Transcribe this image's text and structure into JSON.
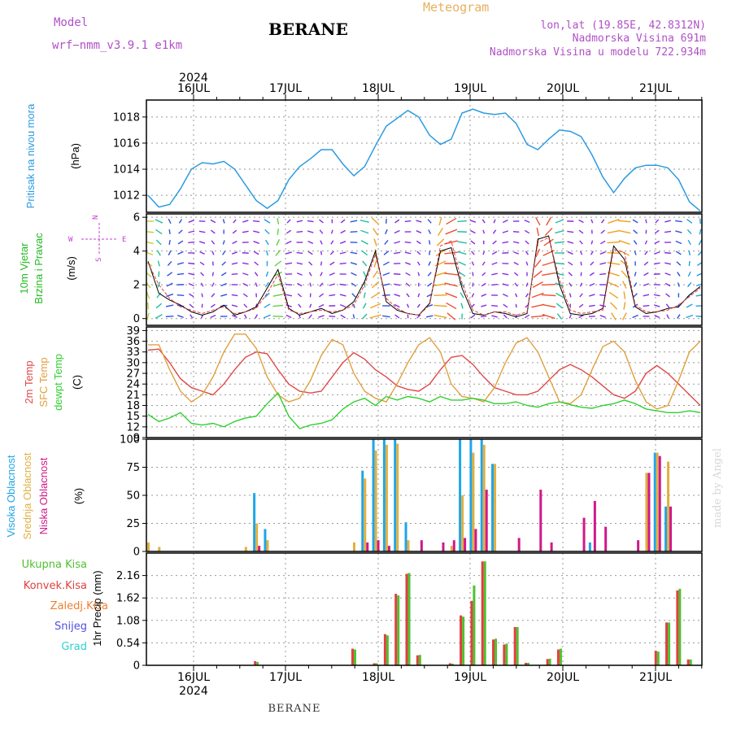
{
  "header": {
    "model_label": "Model",
    "model_name": "wrf−nmm_v3.9.1  e1km",
    "station": "BERANE",
    "product": "Meteogram",
    "coords": "lon,lat (19.85E, 42.8312N)",
    "elev_real": "Nadmorska Visina 691m",
    "elev_model": "Nadmorska Visina u modelu 722.934m"
  },
  "footer": {
    "station": "BERANE",
    "credit": "made by Angel"
  },
  "colors": {
    "pressure": "#2b9be0",
    "temp2m": "#e04848",
    "sfc": "#e0a040",
    "dewpt": "#30d030",
    "cloud_high": "#1fa5e8",
    "cloud_mid": "#e0b040",
    "cloud_low": "#d0188a",
    "rain_total": "#50c030",
    "rain_conv": "#e04040",
    "rain_frz": "#f08030",
    "snow": "#5050e0",
    "hail": "#30d0d0",
    "wind_label": "#22bb22",
    "dir_label": "#c040d0"
  },
  "chart_data": [
    {
      "type": "line",
      "id": "pressure",
      "ylabel": "Pritisak na nivou mora",
      "unit": "(hPa)",
      "ylim": [
        1010.7,
        1019.3
      ],
      "yticks": [
        1012,
        1014,
        1016,
        1018
      ],
      "series": [
        {
          "values": [
            1012,
            1011.1,
            1011.3,
            1012.5,
            1014,
            1014.5,
            1014.4,
            1014.6,
            1014,
            1012.8,
            1011.6,
            1011,
            1011.6,
            1013.2,
            1014.2,
            1014.8,
            1015.5,
            1015.5,
            1014.4,
            1013.5,
            1014.2,
            1015.8,
            1017.3,
            1017.9,
            1018.5,
            1018,
            1016.6,
            1015.9,
            1016.3,
            1018.3,
            1018.6,
            1018.3,
            1018.2,
            1018.3,
            1017.5,
            1015.9,
            1015.5,
            1016.3,
            1017,
            1016.9,
            1016.5,
            1015.1,
            1013.4,
            1012.2,
            1013.3,
            1014.1,
            1014.3,
            1014.3,
            1014.1,
            1013.2,
            1011.5,
            1010.8
          ]
        }
      ]
    },
    {
      "type": "line",
      "id": "wind",
      "ylabel": "10m Vjetar Brzina i Pravac",
      "unit": "(m/s)",
      "compass": {
        "n": "N",
        "s": "S",
        "e": "E",
        "w": "W"
      },
      "ylim": [
        -0.4,
        6.2
      ],
      "yticks": [
        0,
        2,
        4,
        6
      ],
      "series": [
        {
          "values": [
            3.4,
            1.5,
            1.1,
            0.8,
            0.4,
            0.2,
            0.4,
            0.8,
            0.2,
            0.4,
            0.7,
            1.8,
            2.9,
            0.6,
            0.2,
            0.4,
            0.6,
            0.3,
            0.5,
            1.0,
            2.2,
            4.0,
            1.0,
            0.5,
            0.3,
            0.2,
            0.9,
            4.0,
            4.2,
            1.8,
            0.3,
            0.2,
            0.4,
            0.3,
            0.1,
            0.3,
            4.7,
            4.9,
            2.0,
            0.3,
            0.2,
            0.3,
            0.6,
            4.3,
            3.5,
            0.7,
            0.3,
            0.4,
            0.6,
            0.7,
            1.4,
            1.9
          ]
        },
        {
          "values": [
            3.3,
            2.0,
            1.2,
            0.7,
            0.5,
            0.3,
            0.5,
            0.7,
            0.3,
            0.4,
            0.6,
            1.5,
            2.6,
            0.5,
            0.3,
            0.4,
            0.5,
            0.4,
            0.5,
            0.8,
            2.0,
            3.8,
            1.2,
            0.6,
            0.3,
            0.2,
            0.8,
            4.3,
            4.6,
            2.1,
            0.5,
            0.2,
            0.4,
            0.4,
            0.2,
            0.4,
            4.5,
            4.8,
            2.3,
            0.5,
            0.3,
            0.4,
            0.5,
            4.1,
            3.9,
            0.8,
            0.4,
            0.4,
            0.5,
            0.8,
            1.3,
            1.8
          ]
        }
      ]
    },
    {
      "type": "line",
      "id": "temperature",
      "ylabels": [
        "2m Temp",
        "SFC Temp",
        "dewpt Temp"
      ],
      "unit": "(C)",
      "ylim": [
        9,
        40
      ],
      "yticks": [
        9,
        12,
        15,
        18,
        21,
        24,
        27,
        30,
        33,
        36,
        39
      ],
      "series": [
        {
          "name": "2m Temp",
          "values": [
            33.5,
            33.8,
            30,
            25.5,
            23,
            22,
            21,
            24,
            28,
            31.5,
            33,
            32.5,
            28,
            24,
            22,
            21.5,
            22,
            26,
            30,
            32.8,
            31,
            28,
            26,
            23.5,
            22.5,
            22,
            24,
            28,
            31.5,
            32,
            29.5,
            26,
            23,
            22,
            21,
            21,
            22,
            25,
            28,
            29.5,
            28,
            26,
            23.5,
            21,
            20,
            22,
            27,
            29.2,
            27,
            24,
            21,
            18
          ]
        },
        {
          "name": "SFC Temp",
          "values": [
            35,
            35,
            28,
            22,
            19,
            21,
            26,
            33,
            38,
            38,
            34,
            26,
            21,
            19,
            20,
            25,
            32,
            36.5,
            35,
            27,
            22,
            20,
            19,
            24,
            30,
            35,
            37,
            33,
            24,
            20.5,
            20,
            19,
            23,
            30,
            35.5,
            37,
            33,
            26,
            19,
            18.5,
            21,
            28,
            34.5,
            36,
            33,
            25,
            19,
            17,
            18,
            25,
            33,
            36
          ]
        },
        {
          "name": "dewpt Temp",
          "values": [
            15.5,
            13.5,
            14.5,
            16,
            13,
            12.5,
            13,
            12,
            13.5,
            14.5,
            15,
            18.5,
            21.5,
            15,
            11.5,
            12.5,
            13,
            14,
            17,
            19,
            20,
            18,
            20.5,
            19.5,
            20.5,
            20,
            19,
            20.5,
            19.5,
            19.5,
            20,
            19.5,
            18.5,
            18.5,
            19,
            18,
            17.5,
            18.5,
            19,
            18.2,
            17.5,
            17.2,
            18,
            18.5,
            19.5,
            18.5,
            17,
            16.5,
            16,
            16,
            16.5,
            16
          ]
        }
      ]
    },
    {
      "type": "bar",
      "id": "clouds",
      "ylabels": [
        "Visoka Oblacnost",
        "Srednja Oblacnost",
        "Niska Oblacnost"
      ],
      "unit": "(%)",
      "ylim": [
        0,
        100
      ],
      "yticks": [
        0,
        25,
        50,
        75,
        100
      ],
      "series": [
        {
          "name": "Visoka Oblacnost",
          "values": [
            0,
            0,
            0,
            0,
            0,
            0,
            0,
            0,
            0,
            0,
            52,
            20,
            0,
            0,
            0,
            0,
            0,
            0,
            0,
            0,
            72,
            100,
            100,
            100,
            26,
            0,
            0,
            0,
            0,
            100,
            100,
            100,
            78,
            0,
            0,
            0,
            0,
            0,
            0,
            0,
            0,
            8,
            0,
            0,
            0,
            0,
            0,
            88,
            40,
            0,
            0,
            0
          ]
        },
        {
          "name": "Srednja Oblacnost",
          "values": [
            8,
            4,
            0,
            0,
            0,
            0,
            0,
            0,
            0,
            4,
            25,
            10,
            0,
            0,
            0,
            0,
            0,
            0,
            0,
            8,
            65,
            90,
            95,
            96,
            10,
            0,
            0,
            0,
            5,
            50,
            88,
            95,
            78,
            0,
            0,
            0,
            0,
            0,
            0,
            0,
            0,
            0,
            0,
            0,
            0,
            0,
            70,
            88,
            80,
            0,
            0,
            0
          ]
        },
        {
          "name": "Niska Oblacnost",
          "values": [
            0,
            0,
            0,
            0,
            0,
            0,
            0,
            0,
            0,
            0,
            5,
            0,
            0,
            0,
            0,
            0,
            0,
            0,
            0,
            0,
            8,
            10,
            5,
            0,
            0,
            10,
            0,
            8,
            10,
            12,
            20,
            55,
            0,
            0,
            12,
            0,
            55,
            8,
            0,
            0,
            30,
            45,
            22,
            0,
            0,
            10,
            70,
            85,
            40,
            0,
            0,
            0
          ]
        }
      ]
    },
    {
      "type": "bar",
      "id": "precip",
      "ylabels": [
        "Ukupna Kisa",
        "Konvek.Kisa",
        "Zaledj.Kisa",
        "Snijeg",
        "Grad"
      ],
      "unit": "1hr Precip (mm)",
      "ylim": [
        0,
        2.7
      ],
      "yticks": [
        0,
        0.54,
        1.08,
        1.62,
        2.16
      ],
      "ytick_labels": [
        "0",
        "0.54",
        "1.08",
        "1.62",
        "2.16"
      ],
      "series": [
        {
          "name": "Ukupna Kisa",
          "values": [
            0,
            0,
            0,
            0,
            0,
            0,
            0,
            0,
            0,
            0,
            0.08,
            0,
            0,
            0,
            0,
            0,
            0,
            0,
            0,
            0.38,
            0,
            0.05,
            0.72,
            1.68,
            2.22,
            0.25,
            0,
            0,
            0.04,
            1.17,
            1.92,
            2.5,
            0.64,
            0.52,
            0.92,
            0.06,
            0,
            0.16,
            0.4,
            0,
            0,
            0,
            0,
            0,
            0,
            0,
            0,
            0.33,
            1.03,
            1.84,
            0.14,
            0
          ]
        },
        {
          "name": "Konvek.Kisa",
          "values": [
            0,
            0,
            0,
            0,
            0,
            0,
            0,
            0,
            0,
            0,
            0.1,
            0,
            0,
            0,
            0,
            0,
            0,
            0,
            0,
            0.4,
            0,
            0.05,
            0.75,
            1.72,
            2.2,
            0.24,
            0,
            0,
            0.05,
            1.2,
            1.55,
            2.5,
            0.62,
            0.5,
            0.92,
            0.06,
            0,
            0.15,
            0.38,
            0,
            0,
            0,
            0,
            0,
            0,
            0,
            0,
            0.35,
            1.03,
            1.8,
            0.14,
            0
          ]
        }
      ]
    }
  ],
  "time_axis": {
    "year": "2024",
    "days": [
      "16JUL",
      "17JUL",
      "18JUL",
      "19JUL",
      "20JUL",
      "21JUL"
    ]
  }
}
